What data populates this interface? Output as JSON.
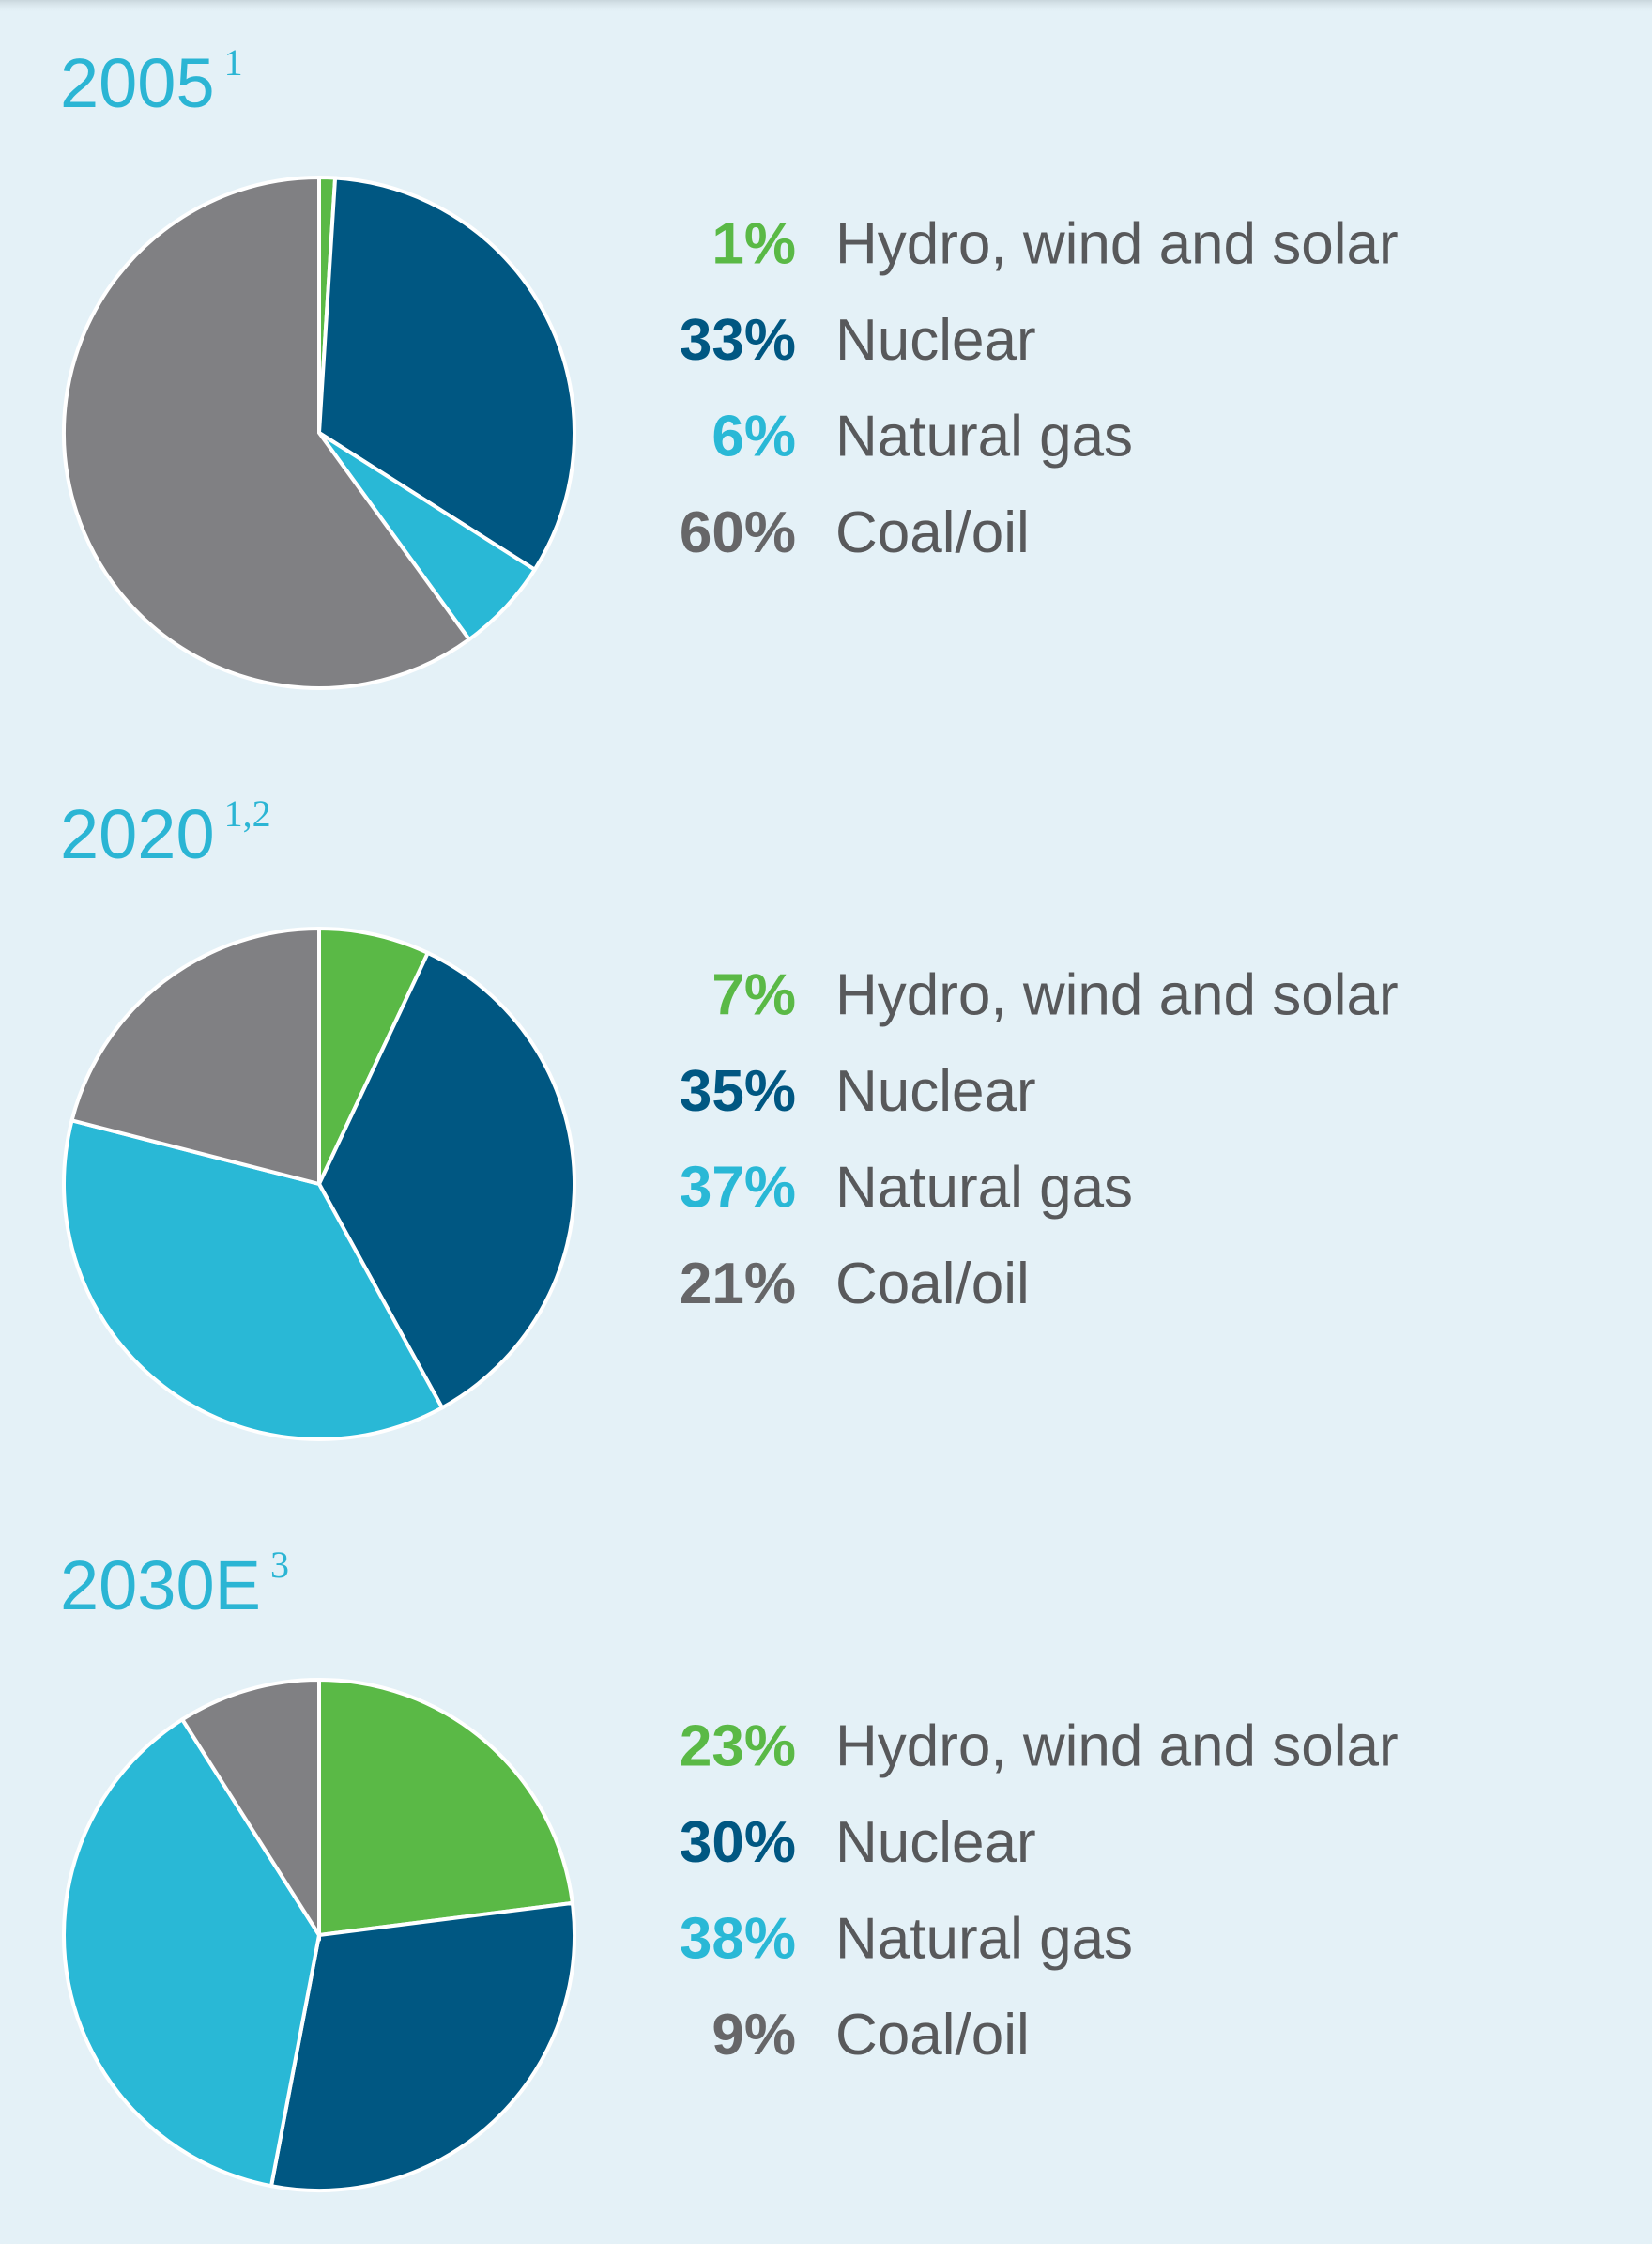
{
  "chart_data": [
    {
      "type": "pie",
      "title": "2005",
      "footnote": "1",
      "categories": [
        "Hydro, wind and solar",
        "Nuclear",
        "Natural gas",
        "Coal/oil"
      ],
      "values": [
        1,
        33,
        6,
        60
      ],
      "value_labels": [
        "1%",
        "33%",
        "6%",
        "60%"
      ],
      "colors": [
        "#5ab946",
        "#005782",
        "#29b8d6",
        "#808083"
      ]
    },
    {
      "type": "pie",
      "title": "2020",
      "footnote": "1,2",
      "categories": [
        "Hydro, wind and solar",
        "Nuclear",
        "Natural gas",
        "Coal/oil"
      ],
      "values": [
        7,
        35,
        37,
        21
      ],
      "value_labels": [
        "7%",
        "35%",
        "37%",
        "21%"
      ],
      "colors": [
        "#5ab946",
        "#005782",
        "#29b8d6",
        "#808083"
      ]
    },
    {
      "type": "pie",
      "title": "2030E",
      "footnote": "3",
      "categories": [
        "Hydro, wind and solar",
        "Nuclear",
        "Natural gas",
        "Coal/oil"
      ],
      "values": [
        23,
        30,
        38,
        9
      ],
      "value_labels": [
        "23%",
        "30%",
        "38%",
        "9%"
      ],
      "colors": [
        "#5ab946",
        "#005782",
        "#29b8d6",
        "#808083"
      ]
    }
  ]
}
